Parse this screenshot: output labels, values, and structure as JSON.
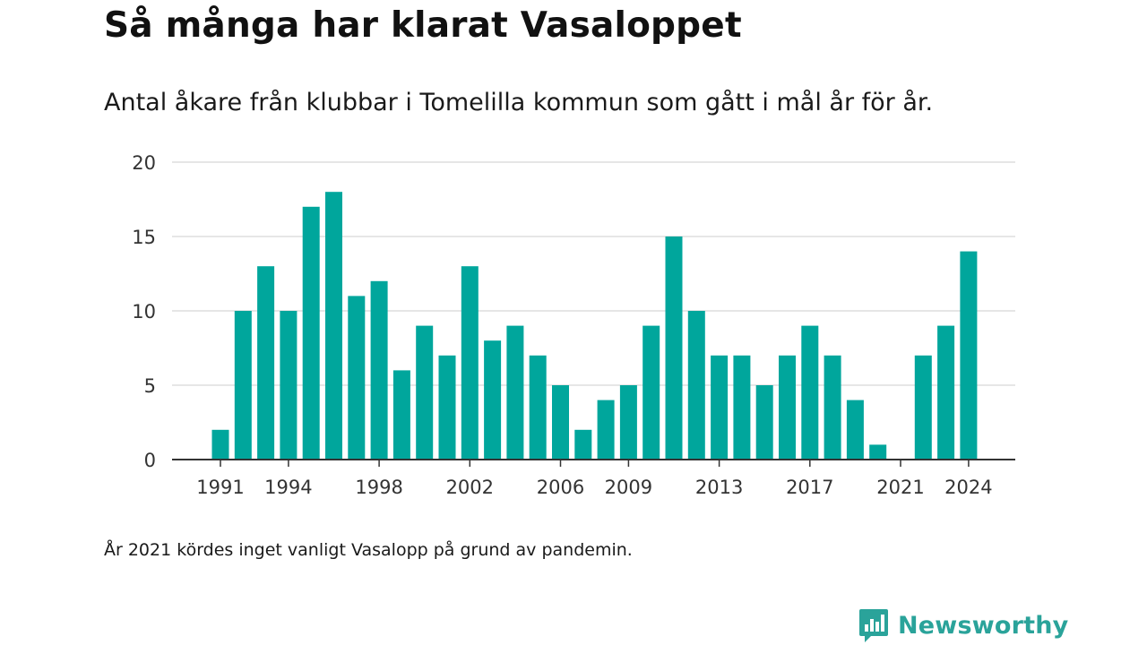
{
  "title": "Så många har klarat Vasaloppet",
  "subtitle": "Antal åkare från klubbar i Tomelilla kommun som gått i mål år för år.",
  "note": "År 2021 kördes inget vanligt Vasalopp på grund av pandemin.",
  "brand": {
    "name": "Newsworthy",
    "icon": "newsworthy-logo-icon"
  },
  "colors": {
    "bar": "#00a69c",
    "grid": "#dddddd",
    "axis": "#333333",
    "text": "#333333",
    "brand": "#2aa39a"
  },
  "chart_data": {
    "type": "bar",
    "x": [
      1991,
      1992,
      1993,
      1994,
      1995,
      1996,
      1997,
      1998,
      1999,
      2000,
      2001,
      2002,
      2003,
      2004,
      2005,
      2006,
      2007,
      2008,
      2009,
      2010,
      2011,
      2012,
      2013,
      2014,
      2015,
      2016,
      2017,
      2018,
      2019,
      2020,
      2021,
      2022,
      2023,
      2024
    ],
    "values": [
      2,
      10,
      13,
      10,
      17,
      18,
      11,
      12,
      6,
      9,
      7,
      13,
      8,
      9,
      7,
      5,
      2,
      4,
      5,
      9,
      15,
      10,
      7,
      7,
      5,
      7,
      9,
      7,
      4,
      1,
      0,
      7,
      9,
      14
    ],
    "xticks": [
      "1991",
      "1994",
      "1998",
      "2002",
      "2006",
      "2009",
      "2013",
      "2017",
      "2021",
      "2024"
    ],
    "yticks": [
      "0",
      "5",
      "10",
      "15",
      "20"
    ],
    "ylim": [
      0,
      20
    ],
    "grid": true
  }
}
